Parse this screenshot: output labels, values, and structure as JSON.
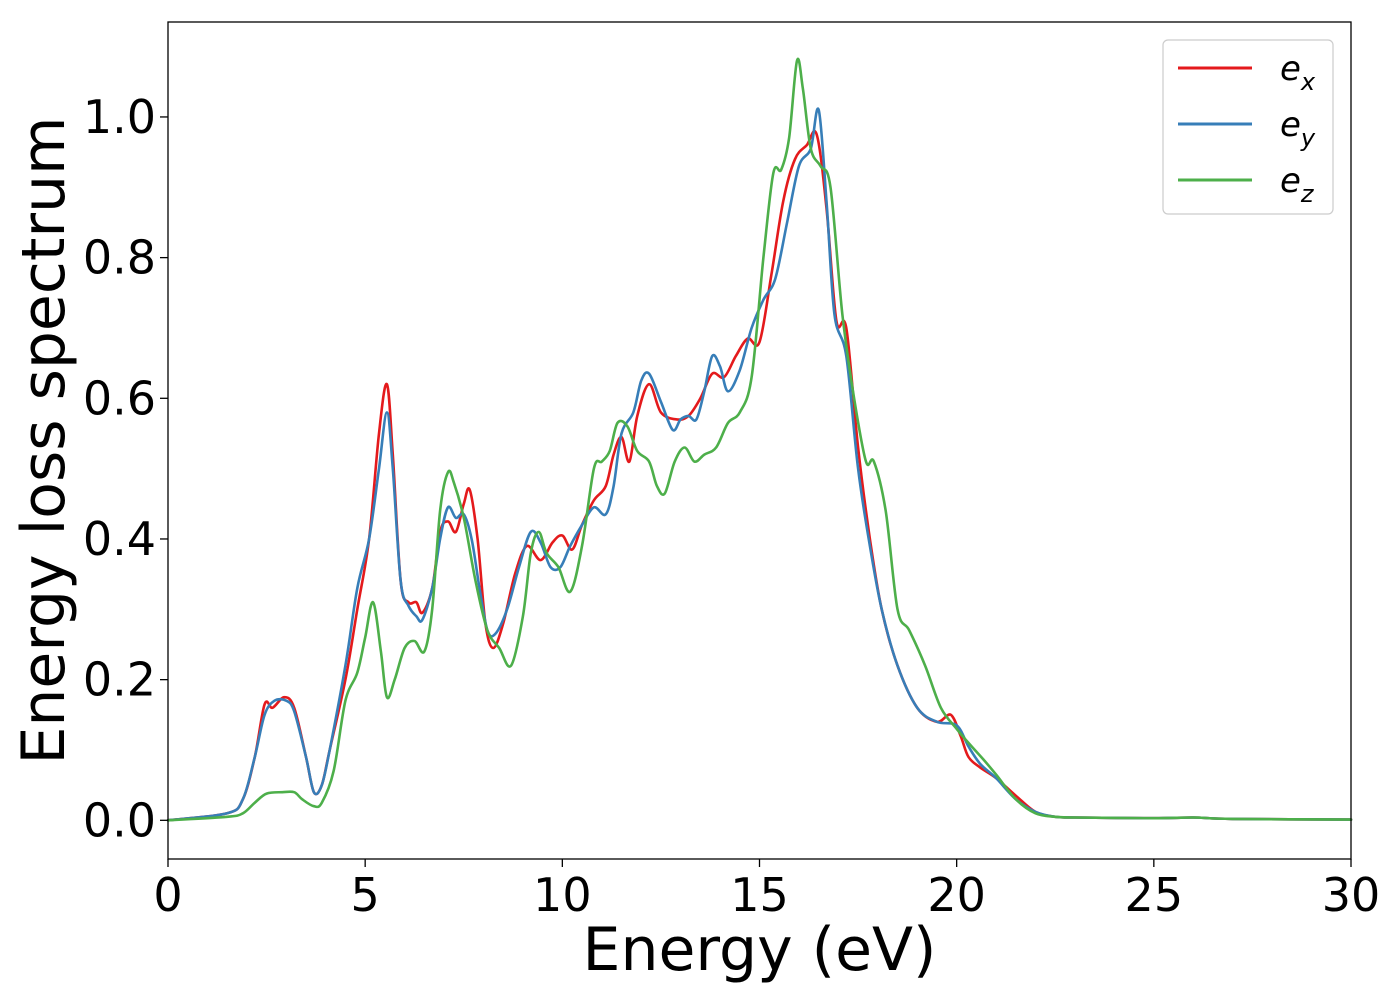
{
  "chart_data": {
    "type": "line",
    "xlabel": "Energy (eV)",
    "ylabel": "Energy loss spectrum",
    "xlim": [
      0,
      30
    ],
    "ylim": [
      -0.055,
      1.135
    ],
    "xticks": [
      0,
      5,
      10,
      15,
      20,
      25,
      30
    ],
    "xtick_labels": [
      "0",
      "5",
      "10",
      "15",
      "20",
      "25",
      "30"
    ],
    "yticks": [
      0.0,
      0.2,
      0.4,
      0.6,
      0.8,
      1.0
    ],
    "ytick_labels": [
      "0.0",
      "0.2",
      "0.4",
      "0.6",
      "0.8",
      "1.0"
    ],
    "grid": false,
    "legend_position": "top-right",
    "series": [
      {
        "name": "e",
        "subscript": "x",
        "color": "#e41a1c",
        "x": [
          0,
          1.5,
          1.9,
          2.2,
          2.45,
          2.65,
          2.95,
          3.2,
          3.5,
          3.7,
          3.9,
          4.1,
          4.5,
          4.8,
          5.1,
          5.35,
          5.55,
          5.7,
          5.9,
          6.1,
          6.3,
          6.45,
          6.7,
          6.9,
          7.1,
          7.3,
          7.5,
          7.65,
          7.85,
          8.05,
          8.25,
          8.5,
          8.8,
          9.1,
          9.45,
          9.75,
          10.0,
          10.25,
          10.5,
          10.8,
          11.1,
          11.3,
          11.5,
          11.7,
          11.9,
          12.2,
          12.5,
          12.9,
          13.2,
          13.5,
          13.8,
          14.1,
          14.4,
          14.7,
          15.0,
          15.3,
          15.6,
          15.9,
          16.2,
          16.45,
          16.7,
          16.95,
          17.2,
          17.5,
          17.8,
          18.1,
          18.5,
          19.0,
          19.5,
          19.85,
          20.1,
          20.3,
          20.6,
          21.0,
          21.5,
          22.0,
          22.5,
          23.0,
          25.0,
          26.0,
          27.0,
          30.0
        ],
        "y": [
          0.0,
          0.01,
          0.03,
          0.09,
          0.165,
          0.16,
          0.175,
          0.16,
          0.09,
          0.04,
          0.05,
          0.1,
          0.2,
          0.3,
          0.4,
          0.55,
          0.62,
          0.52,
          0.34,
          0.31,
          0.31,
          0.295,
          0.33,
          0.41,
          0.425,
          0.41,
          0.45,
          0.47,
          0.4,
          0.28,
          0.245,
          0.28,
          0.35,
          0.39,
          0.37,
          0.395,
          0.405,
          0.385,
          0.42,
          0.455,
          0.475,
          0.52,
          0.545,
          0.51,
          0.575,
          0.62,
          0.58,
          0.57,
          0.575,
          0.6,
          0.635,
          0.63,
          0.66,
          0.685,
          0.68,
          0.775,
          0.88,
          0.94,
          0.96,
          0.975,
          0.87,
          0.71,
          0.7,
          0.53,
          0.4,
          0.3,
          0.22,
          0.16,
          0.14,
          0.15,
          0.12,
          0.09,
          0.075,
          0.06,
          0.035,
          0.012,
          0.005,
          0.004,
          0.003,
          0.004,
          0.002,
          0.001
        ]
      },
      {
        "name": "e",
        "subscript": "y",
        "color": "#377eb8",
        "x": [
          0,
          1.5,
          1.9,
          2.2,
          2.45,
          2.7,
          3.0,
          3.2,
          3.5,
          3.7,
          3.9,
          4.1,
          4.5,
          4.8,
          5.1,
          5.35,
          5.55,
          5.7,
          5.9,
          6.1,
          6.3,
          6.45,
          6.7,
          6.9,
          7.1,
          7.3,
          7.5,
          7.7,
          7.9,
          8.1,
          8.3,
          8.6,
          8.9,
          9.2,
          9.45,
          9.7,
          9.95,
          10.2,
          10.5,
          10.8,
          11.1,
          11.3,
          11.5,
          11.8,
          12.0,
          12.2,
          12.5,
          12.8,
          13.0,
          13.2,
          13.4,
          13.6,
          13.8,
          14.0,
          14.2,
          14.5,
          14.8,
          15.1,
          15.4,
          15.7,
          16.0,
          16.3,
          16.5,
          16.7,
          16.9,
          17.2,
          17.5,
          17.8,
          18.1,
          18.5,
          19.0,
          19.5,
          20.0,
          20.3,
          20.6,
          21.0,
          21.5,
          22.0,
          22.5,
          23.0,
          25.0,
          26.0,
          27.0,
          30.0
        ],
        "y": [
          0.0,
          0.01,
          0.03,
          0.09,
          0.15,
          0.17,
          0.17,
          0.155,
          0.09,
          0.04,
          0.05,
          0.1,
          0.22,
          0.33,
          0.4,
          0.5,
          0.58,
          0.5,
          0.34,
          0.305,
          0.29,
          0.285,
          0.33,
          0.4,
          0.445,
          0.43,
          0.435,
          0.4,
          0.33,
          0.27,
          0.265,
          0.3,
          0.36,
          0.41,
          0.395,
          0.36,
          0.36,
          0.39,
          0.42,
          0.445,
          0.435,
          0.475,
          0.55,
          0.58,
          0.625,
          0.635,
          0.595,
          0.555,
          0.57,
          0.575,
          0.57,
          0.61,
          0.66,
          0.645,
          0.61,
          0.64,
          0.7,
          0.74,
          0.77,
          0.85,
          0.93,
          0.955,
          1.01,
          0.88,
          0.72,
          0.66,
          0.5,
          0.39,
          0.3,
          0.22,
          0.16,
          0.14,
          0.135,
          0.105,
          0.08,
          0.06,
          0.03,
          0.012,
          0.005,
          0.004,
          0.003,
          0.004,
          0.002,
          0.001
        ]
      },
      {
        "name": "e",
        "subscript": "z",
        "color": "#4daf4a",
        "x": [
          0,
          1.5,
          1.9,
          2.2,
          2.5,
          2.9,
          3.2,
          3.4,
          3.7,
          3.9,
          4.2,
          4.5,
          4.8,
          5.0,
          5.2,
          5.4,
          5.55,
          5.75,
          6.0,
          6.25,
          6.5,
          6.7,
          6.9,
          7.1,
          7.25,
          7.5,
          7.8,
          8.1,
          8.4,
          8.7,
          9.0,
          9.2,
          9.4,
          9.6,
          9.9,
          10.2,
          10.5,
          10.8,
          11.0,
          11.2,
          11.4,
          11.65,
          11.9,
          12.2,
          12.4,
          12.6,
          12.85,
          13.1,
          13.35,
          13.6,
          13.9,
          14.2,
          14.5,
          14.8,
          15.1,
          15.35,
          15.55,
          15.75,
          15.95,
          16.1,
          16.3,
          16.55,
          16.8,
          17.1,
          17.4,
          17.7,
          17.9,
          18.2,
          18.5,
          18.8,
          19.2,
          19.6,
          20.0,
          20.3,
          20.7,
          21.0,
          21.5,
          22.0,
          22.5,
          23.0,
          25.0,
          26.0,
          27.0,
          30.0
        ],
        "y": [
          0.0,
          0.005,
          0.01,
          0.025,
          0.038,
          0.04,
          0.04,
          0.03,
          0.02,
          0.025,
          0.07,
          0.17,
          0.21,
          0.26,
          0.31,
          0.24,
          0.175,
          0.2,
          0.245,
          0.255,
          0.24,
          0.3,
          0.44,
          0.495,
          0.48,
          0.43,
          0.34,
          0.27,
          0.245,
          0.22,
          0.29,
          0.38,
          0.41,
          0.38,
          0.36,
          0.325,
          0.39,
          0.5,
          0.51,
          0.525,
          0.565,
          0.56,
          0.525,
          0.51,
          0.475,
          0.465,
          0.51,
          0.53,
          0.51,
          0.52,
          0.53,
          0.565,
          0.58,
          0.63,
          0.8,
          0.92,
          0.925,
          0.97,
          1.08,
          1.04,
          0.955,
          0.93,
          0.9,
          0.72,
          0.6,
          0.51,
          0.51,
          0.44,
          0.3,
          0.27,
          0.22,
          0.16,
          0.13,
          0.11,
          0.085,
          0.065,
          0.03,
          0.01,
          0.005,
          0.004,
          0.003,
          0.004,
          0.002,
          0.001
        ]
      }
    ]
  }
}
